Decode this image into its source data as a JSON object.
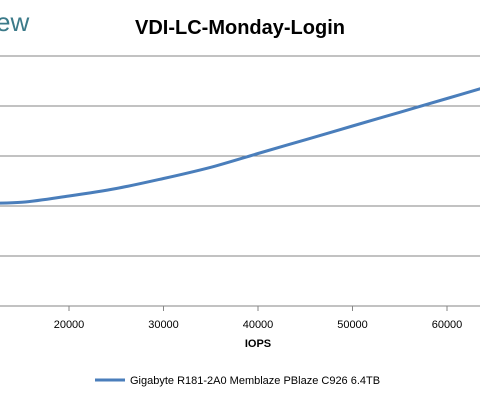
{
  "brand": {
    "logo_fragment": "ew",
    "logo_color": "#3b7a89"
  },
  "chart_data": {
    "type": "line",
    "title": "VDI-LC-Monday-Login",
    "xlabel": "IOPS",
    "ylabel": "",
    "x_ticks": [
      "20000",
      "30000",
      "40000",
      "50000",
      "60000"
    ],
    "x_tick_values": [
      20000,
      30000,
      40000,
      50000,
      60000
    ],
    "grid": true,
    "legend_position": "bottom",
    "series": [
      {
        "name": "Gigabyte R181-2A0 Memblaze PBlaze C926 6.4TB",
        "color": "#4a7ebb",
        "points": [
          [
            10000,
            0.41
          ],
          [
            15000,
            0.415
          ],
          [
            20000,
            0.44
          ],
          [
            25000,
            0.47
          ],
          [
            30000,
            0.51
          ],
          [
            35000,
            0.555
          ],
          [
            40000,
            0.61
          ],
          [
            45000,
            0.665
          ],
          [
            50000,
            0.72
          ],
          [
            55000,
            0.775
          ],
          [
            60000,
            0.83
          ],
          [
            64500,
            0.88
          ]
        ]
      }
    ]
  }
}
